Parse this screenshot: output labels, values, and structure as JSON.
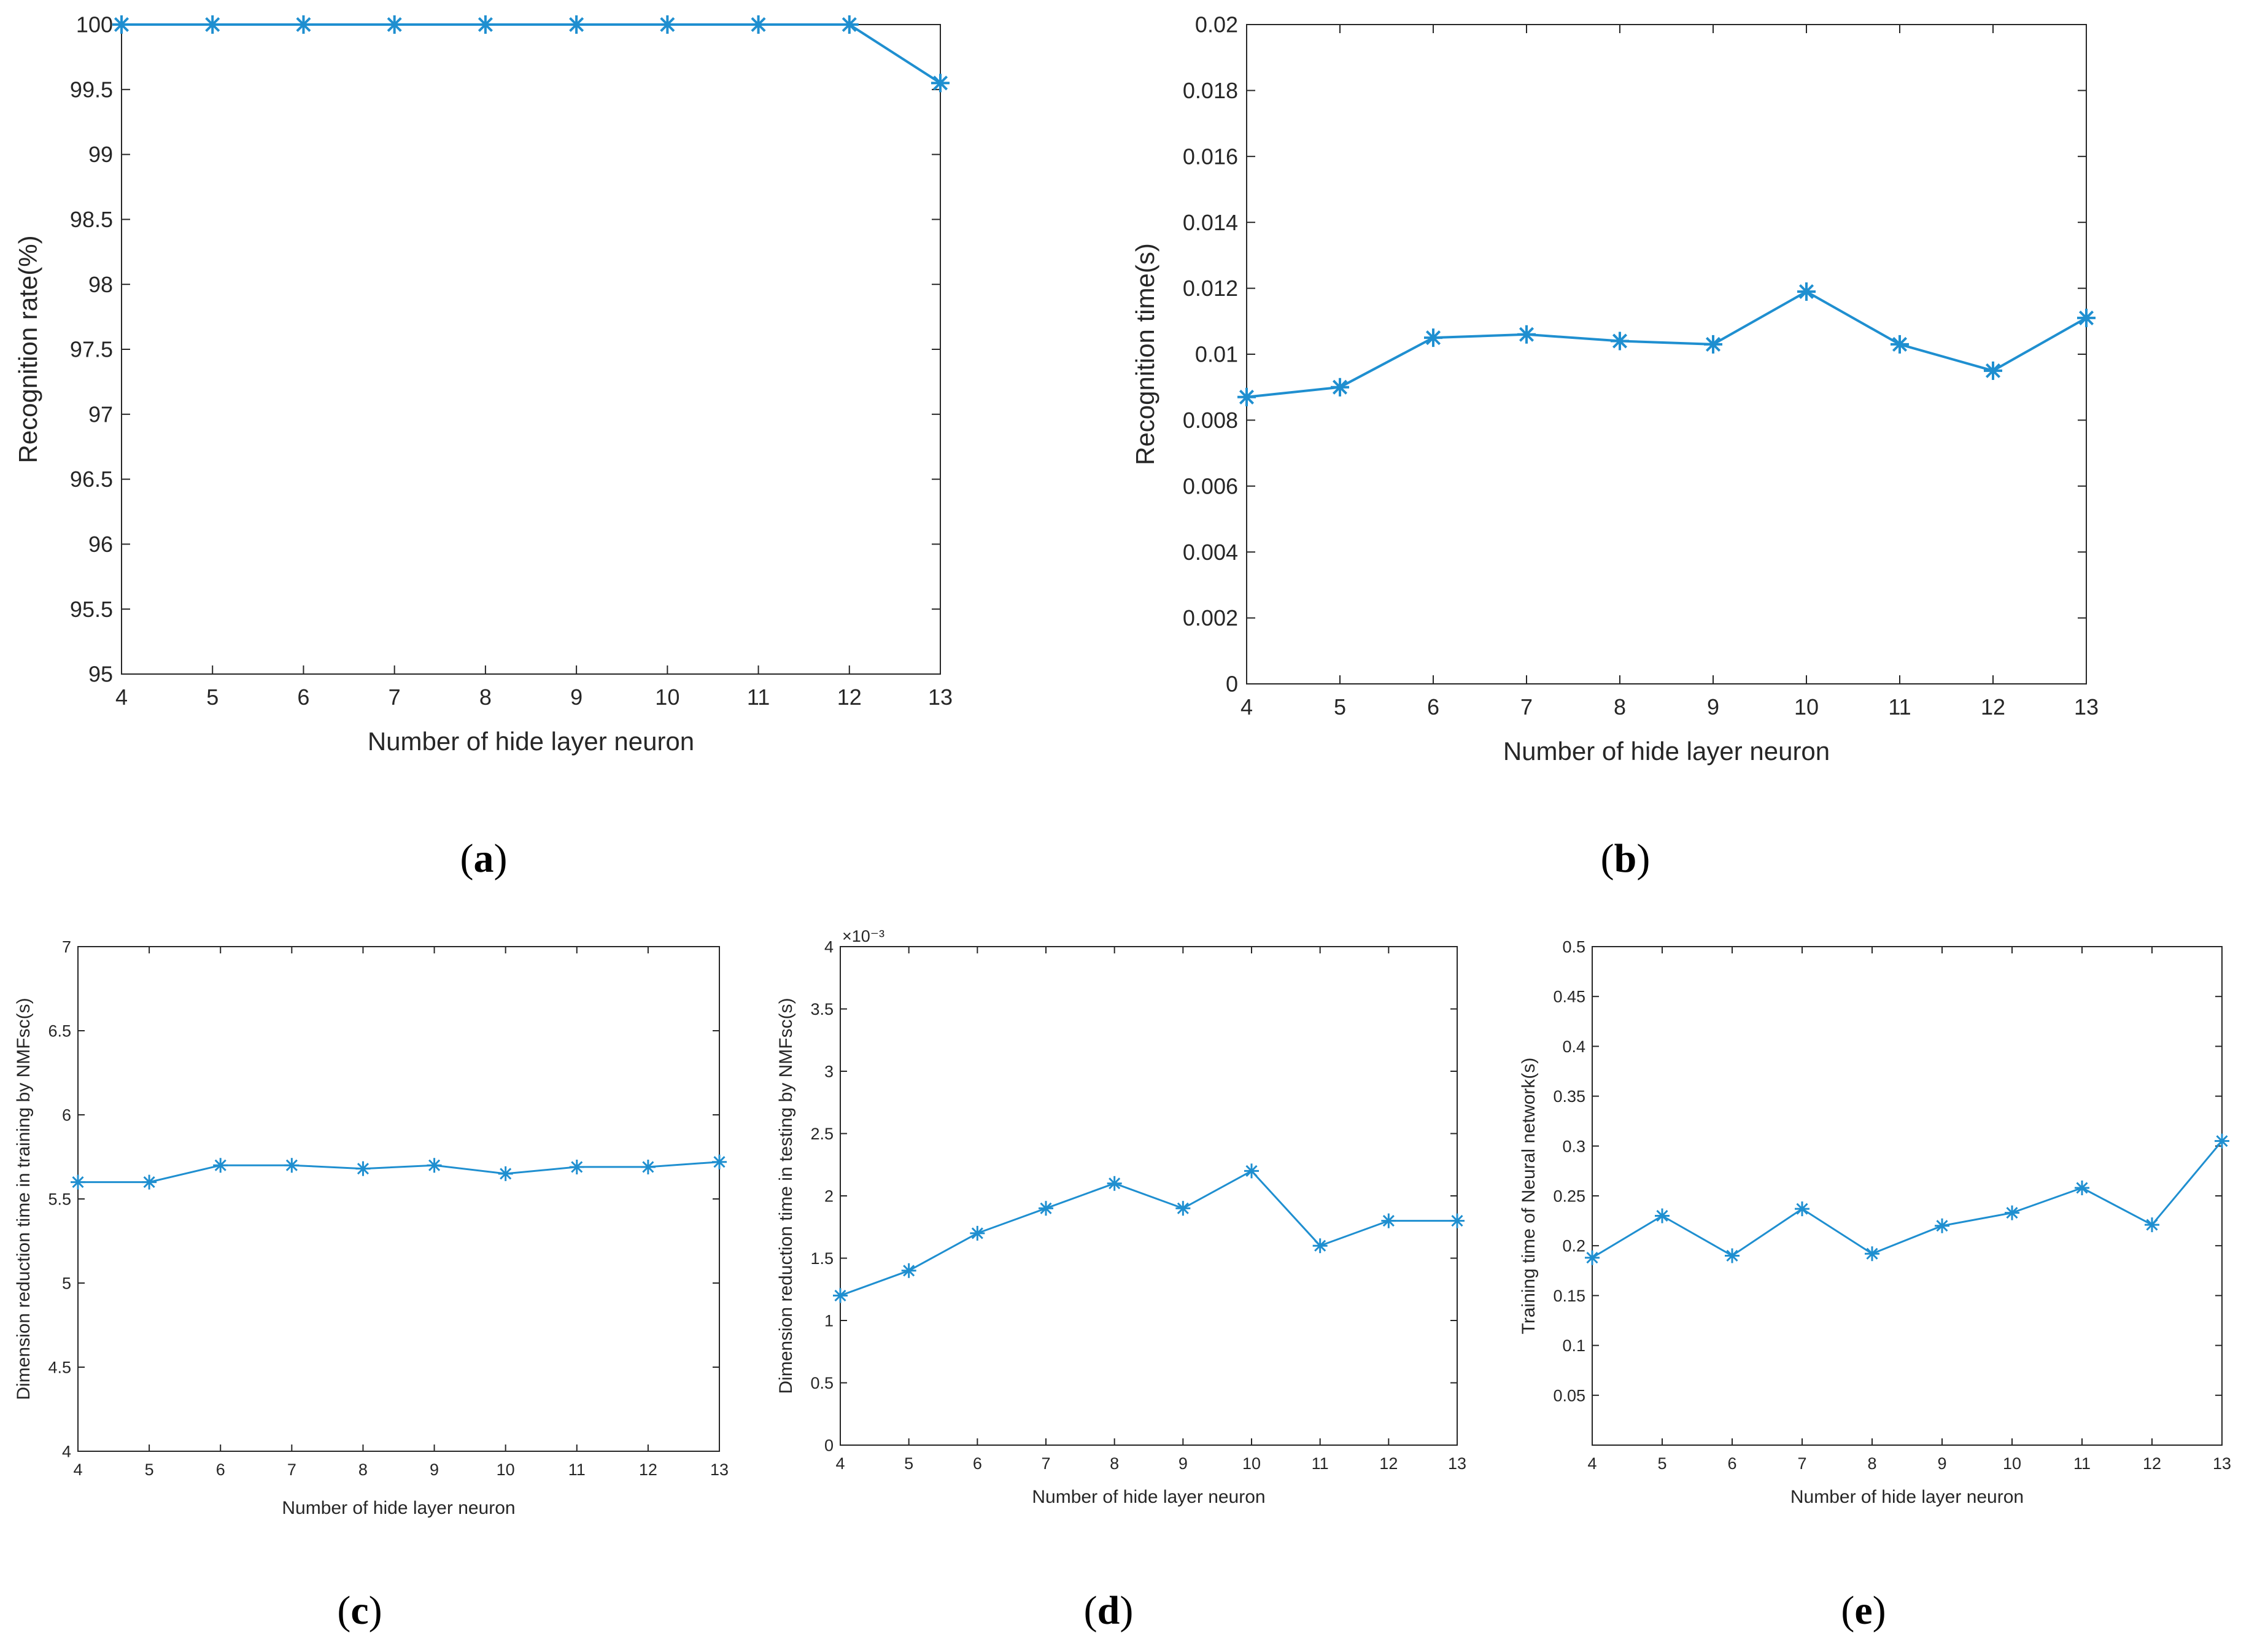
{
  "colors": {
    "series": "#1f8fd0",
    "axis": "#262626",
    "background": "#ffffff"
  },
  "chart_data": [
    {
      "type": "line",
      "panel_label": "(a)",
      "panel_paren_open": "(",
      "panel_letter": "a",
      "panel_paren_close": ")",
      "title": "",
      "xlabel": "Number of hide layer neuron",
      "ylabel": "Recognition rate(%)",
      "xlim": [
        4,
        13
      ],
      "ylim": [
        95,
        100
      ],
      "xticks": [
        4,
        5,
        6,
        7,
        8,
        9,
        10,
        11,
        12,
        13
      ],
      "xtick_labels": [
        "4",
        "5",
        "6",
        "7",
        "8",
        "9",
        "10",
        "11",
        "12",
        "13"
      ],
      "yticks": [
        95,
        95.5,
        96,
        96.5,
        97,
        97.5,
        98,
        98.5,
        99,
        99.5,
        100
      ],
      "ytick_labels": [
        "95",
        "95.5",
        "96",
        "96.5",
        "97",
        "97.5",
        "98",
        "98.5",
        "99",
        "99.5",
        "100"
      ],
      "exponent_label": "",
      "marker": "asterisk",
      "series": [
        {
          "name": "Recognition rate",
          "x": [
            4,
            5,
            6,
            7,
            8,
            9,
            10,
            11,
            12,
            13
          ],
          "values": [
            100,
            100,
            100,
            100,
            100,
            100,
            100,
            100,
            100,
            99.55
          ]
        }
      ]
    },
    {
      "type": "line",
      "panel_label": "(b)",
      "panel_paren_open": "(",
      "panel_letter": "b",
      "panel_paren_close": ")",
      "title": "",
      "xlabel": "Number of hide layer neuron",
      "ylabel": "Recognition time(s)",
      "xlim": [
        4,
        13
      ],
      "ylim": [
        0,
        0.02
      ],
      "xticks": [
        4,
        5,
        6,
        7,
        8,
        9,
        10,
        11,
        12,
        13
      ],
      "xtick_labels": [
        "4",
        "5",
        "6",
        "7",
        "8",
        "9",
        "10",
        "11",
        "12",
        "13"
      ],
      "yticks": [
        0,
        0.002,
        0.004,
        0.006,
        0.008,
        0.01,
        0.012,
        0.014,
        0.016,
        0.018,
        0.02
      ],
      "ytick_labels": [
        "0",
        "0.002",
        "0.004",
        "0.006",
        "0.008",
        "0.01",
        "0.012",
        "0.014",
        "0.016",
        "0.018",
        "0.02"
      ],
      "exponent_label": "",
      "marker": "asterisk",
      "series": [
        {
          "name": "Recognition time",
          "x": [
            4,
            5,
            6,
            7,
            8,
            9,
            10,
            11,
            12,
            13
          ],
          "values": [
            0.0087,
            0.009,
            0.0105,
            0.0106,
            0.0104,
            0.0103,
            0.0119,
            0.0103,
            0.0095,
            0.0111
          ]
        }
      ]
    },
    {
      "type": "line",
      "panel_label": "(c)",
      "panel_paren_open": "(",
      "panel_letter": "c",
      "panel_paren_close": ")",
      "title": "",
      "xlabel": "Number of hide layer neuron",
      "ylabel": "Dimension reduction time in training by NMFsc(s)",
      "xlim": [
        4,
        13
      ],
      "ylim": [
        4,
        7
      ],
      "xticks": [
        4,
        5,
        6,
        7,
        8,
        9,
        10,
        11,
        12,
        13
      ],
      "xtick_labels": [
        "4",
        "5",
        "6",
        "7",
        "8",
        "9",
        "10",
        "11",
        "12",
        "13"
      ],
      "yticks": [
        4,
        4.5,
        5,
        5.5,
        6,
        6.5,
        7
      ],
      "ytick_labels": [
        "4",
        "4.5",
        "5",
        "5.5",
        "6",
        "6.5",
        "7"
      ],
      "exponent_label": "",
      "marker": "asterisk",
      "series": [
        {
          "name": "Training dimension reduction time",
          "x": [
            4,
            5,
            6,
            7,
            8,
            9,
            10,
            11,
            12,
            13
          ],
          "values": [
            5.6,
            5.6,
            5.7,
            5.7,
            5.68,
            5.7,
            5.65,
            5.69,
            5.69,
            5.72
          ]
        }
      ]
    },
    {
      "type": "line",
      "panel_label": "(d)",
      "panel_paren_open": "(",
      "panel_letter": "d",
      "panel_paren_close": ")",
      "title": "",
      "xlabel": "Number of hide layer neuron",
      "ylabel": "Dimension reduction time in testing by NMFsc(s)",
      "xlim": [
        4,
        13
      ],
      "ylim": [
        0,
        4
      ],
      "xticks": [
        4,
        5,
        6,
        7,
        8,
        9,
        10,
        11,
        12,
        13
      ],
      "xtick_labels": [
        "4",
        "5",
        "6",
        "7",
        "8",
        "9",
        "10",
        "11",
        "12",
        "13"
      ],
      "yticks": [
        0,
        0.5,
        1,
        1.5,
        2,
        2.5,
        3,
        3.5,
        4
      ],
      "ytick_labels": [
        "0",
        "0.5",
        "1",
        "1.5",
        "2",
        "2.5",
        "3",
        "3.5",
        "4"
      ],
      "exponent_label": "×10⁻³",
      "marker": "asterisk",
      "series": [
        {
          "name": "Testing dimension reduction time",
          "x": [
            4,
            5,
            6,
            7,
            8,
            9,
            10,
            11,
            12,
            13
          ],
          "values": [
            1.2,
            1.4,
            1.7,
            1.9,
            2.1,
            1.9,
            2.2,
            1.6,
            1.8,
            1.8
          ]
        }
      ]
    },
    {
      "type": "line",
      "panel_label": "(e)",
      "panel_paren_open": "(",
      "panel_letter": "e",
      "panel_paren_close": ")",
      "title": "",
      "xlabel": "Number of hide layer neuron",
      "ylabel": "Training time of Neural network(s)",
      "xlim": [
        4,
        13
      ],
      "ylim": [
        0,
        0.5
      ],
      "xticks": [
        4,
        5,
        6,
        7,
        8,
        9,
        10,
        11,
        12,
        13
      ],
      "xtick_labels": [
        "4",
        "5",
        "6",
        "7",
        "8",
        "9",
        "10",
        "11",
        "12",
        "13"
      ],
      "yticks": [
        0.05,
        0.1,
        0.15,
        0.2,
        0.25,
        0.3,
        0.35,
        0.4,
        0.45,
        0.5
      ],
      "ytick_labels": [
        "0.05",
        "0.1",
        "0.15",
        "0.2",
        "0.25",
        "0.3",
        "0.35",
        "0.4",
        "0.45",
        "0.5"
      ],
      "exponent_label": "",
      "marker": "asterisk",
      "series": [
        {
          "name": "Neural network training time",
          "x": [
            4,
            5,
            6,
            7,
            8,
            9,
            10,
            11,
            12,
            13
          ],
          "values": [
            0.188,
            0.23,
            0.19,
            0.237,
            0.192,
            0.22,
            0.233,
            0.258,
            0.221,
            0.305
          ]
        }
      ]
    }
  ]
}
